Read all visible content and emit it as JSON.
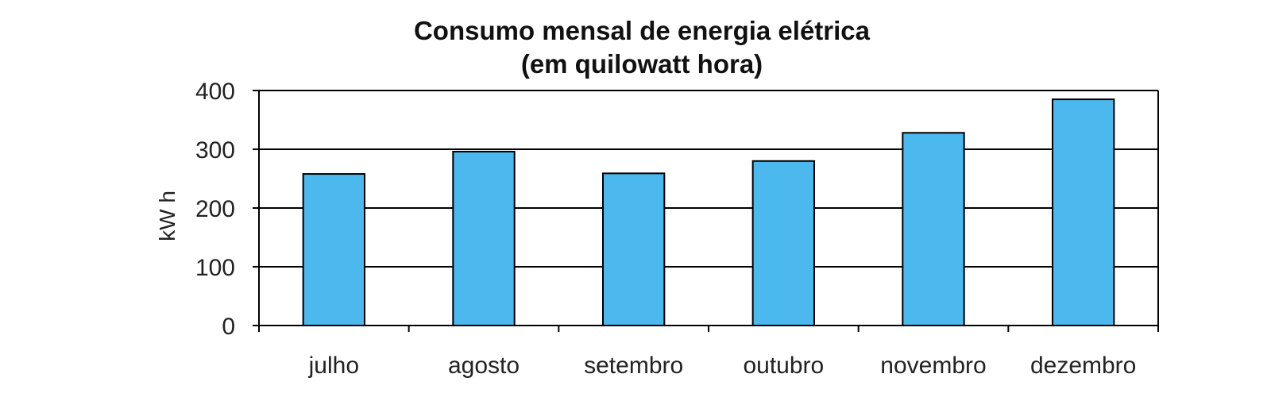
{
  "chart_data": {
    "type": "bar",
    "title": "Consumo mensal de energia elétrica",
    "subtitle": "(em quilowatt hora)",
    "xlabel": "",
    "ylabel": "kW h",
    "categories": [
      "julho",
      "agosto",
      "setembro",
      "outubro",
      "novembro",
      "dezembro"
    ],
    "values": [
      258,
      296,
      259,
      280,
      328,
      385
    ],
    "ylim": [
      0,
      400
    ],
    "yticks": [
      "0",
      "100",
      "200",
      "300",
      "400"
    ],
    "grid": true,
    "legend": "none",
    "bar_color": "#4BB8EE",
    "bar_edge_color": "#000000"
  }
}
